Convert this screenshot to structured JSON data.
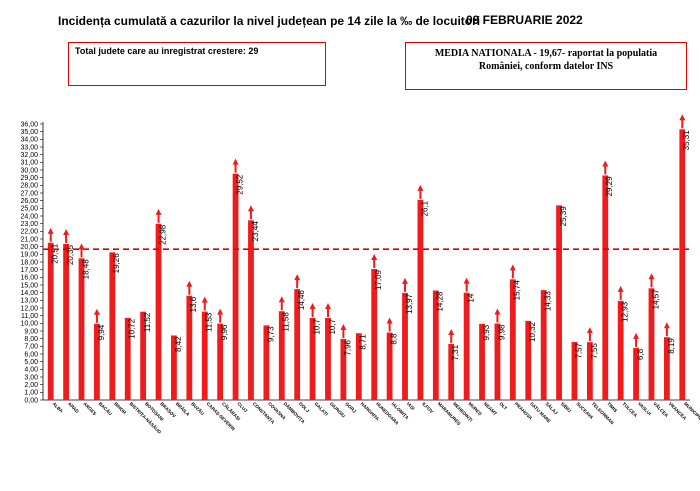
{
  "header": {
    "title": "Incidența cumulată a cazurilor la nivel județean pe 14 zile la ‰ de locuitori",
    "date": "09 FEBRUARIE 2022"
  },
  "box_total": {
    "text": "Total judete care au inregistrat crestere: 29"
  },
  "box_media": {
    "text": "MEDIA NATIONALA - 19,67-  raportat la populatia României, conform datelor INS"
  },
  "colors": {
    "bar": "#ee1c1c",
    "arrow": "#ee1c1c",
    "average_line": "#e00000",
    "box_border": "#e00000"
  },
  "chart_data": {
    "type": "bar",
    "title": "Incidența cumulată a cazurilor la nivel județean pe 14 zile la ‰ de locuitori",
    "ylim": [
      0,
      36
    ],
    "ytick_step": 1,
    "ytick_labels": [
      "0,00",
      "1,00",
      "2,00",
      "3,00",
      "4,00",
      "5,00",
      "6,00",
      "7,00",
      "8,00",
      "9,00",
      "10,00",
      "11,00",
      "12,00",
      "13,00",
      "14,00",
      "15,00",
      "16,00",
      "17,00",
      "18,00",
      "19,00",
      "20,00",
      "21,00",
      "22,00",
      "23,00",
      "24,00",
      "25,00",
      "26,00",
      "27,00",
      "28,00",
      "29,00",
      "30,00",
      "31,00",
      "32,00",
      "33,00",
      "34,00",
      "35,00",
      "36,00"
    ],
    "average_line": 19.67,
    "grid": false,
    "categories": [
      "ALBA",
      "ARAD",
      "ARGEȘ",
      "BACĂU",
      "BIHOR",
      "BISTRIȚA-NĂSĂUD",
      "BOTOȘANI",
      "BRAȘOV",
      "BRĂILA",
      "BUZĂU",
      "CARAȘ-SEVERIN",
      "CĂLĂRAȘI",
      "CLUJ",
      "CONSTANȚA",
      "COVASNA",
      "DÂMBOVIȚA",
      "DOLJ",
      "GALAȚI",
      "GIURGIU",
      "GORJ",
      "HARGHITA",
      "HUNEDOARA",
      "IALOMIȚA",
      "IAȘI",
      "ILFOV",
      "MARAMUREȘ",
      "MEHEDINȚI",
      "MUREȘ",
      "NEAMȚ",
      "OLT",
      "PRAHOVA",
      "SATU MARE",
      "SĂLAJ",
      "SIBIU",
      "SUCEAVA",
      "TELEORMAN",
      "TIMIȘ",
      "TULCEA",
      "VASLUI",
      "VÂLCEA",
      "VRANCEA",
      "MUNICIPIUL BUCUREȘTI"
    ],
    "values": [
      20.51,
      20.35,
      18.48,
      9.94,
      19.26,
      10.72,
      11.52,
      22.98,
      8.42,
      13.6,
      11.53,
      9.96,
      29.52,
      23.44,
      9.73,
      11.58,
      14.46,
      10.7,
      10.7,
      7.96,
      8.71,
      17.09,
      8.8,
      13.97,
      26.1,
      14.28,
      7.31,
      14,
      9.93,
      9.98,
      15.74,
      10.32,
      14.33,
      25.39,
      7.57,
      7.55,
      29.29,
      12.93,
      6.8,
      14.57,
      8.19,
      35.31
    ],
    "value_labels": [
      "20,51",
      "20,35",
      "18,48",
      "9,94",
      "19,26",
      "10,72",
      "11,52",
      "22,98",
      "8,42",
      "13,6",
      "11,53",
      "9,96",
      "29,52",
      "23,44",
      "9,73",
      "11,58",
      "14,46",
      "10,7",
      "10,7",
      "7,96",
      "8,71",
      "17,09",
      "8,8",
      "13,97",
      "26,1",
      "14,28",
      "7,31",
      "14",
      "9,93",
      "9,98",
      "15,74",
      "10,32",
      "14,33",
      "25,39",
      "7,57",
      "7,55",
      "29,29",
      "12,93",
      "6,8",
      "14,57",
      "8,19",
      "35,31"
    ],
    "increase_arrow": [
      true,
      true,
      true,
      true,
      false,
      false,
      false,
      true,
      false,
      true,
      true,
      true,
      true,
      true,
      false,
      true,
      true,
      true,
      true,
      true,
      false,
      true,
      true,
      true,
      true,
      false,
      true,
      true,
      false,
      true,
      true,
      false,
      false,
      false,
      false,
      true,
      true,
      true,
      true,
      true,
      true,
      true
    ]
  }
}
